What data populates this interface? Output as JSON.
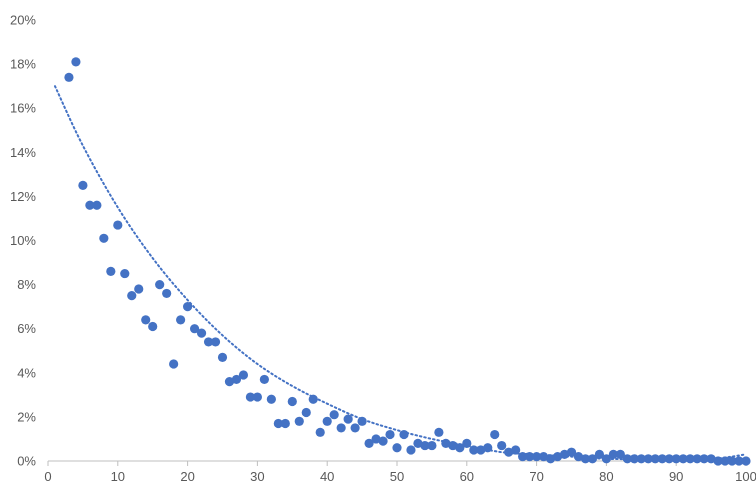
{
  "chart_data": {
    "type": "scatter",
    "title": "",
    "xlabel": "",
    "ylabel": "",
    "xlim": [
      0,
      100
    ],
    "ylim": [
      0,
      0.2
    ],
    "x_ticks": [
      0,
      10,
      20,
      30,
      40,
      50,
      60,
      70,
      80,
      90,
      100
    ],
    "x_tick_labels": [
      "0",
      "10",
      "20",
      "30",
      "40",
      "50",
      "60",
      "70",
      "80",
      "90",
      "100"
    ],
    "y_ticks": [
      0,
      0.02,
      0.04,
      0.06,
      0.08,
      0.1,
      0.12,
      0.14,
      0.16,
      0.18,
      0.2
    ],
    "y_tick_labels": [
      "0%",
      "2%",
      "4%",
      "6%",
      "8%",
      "10%",
      "12%",
      "14%",
      "16%",
      "18%",
      "20%"
    ],
    "grid": false,
    "legend": "none",
    "marker_color": "#4472c4",
    "trendline": {
      "type": "exponential",
      "style": "dotted",
      "color": "#4472c4",
      "x": [
        1,
        5,
        10,
        15,
        20,
        25,
        30,
        35,
        40,
        45,
        50,
        55,
        60,
        65,
        70,
        75,
        80,
        85,
        90,
        95,
        100
      ],
      "y": [
        0.17,
        0.143,
        0.115,
        0.092,
        0.073,
        0.057,
        0.044,
        0.034,
        0.026,
        0.019,
        0.014,
        0.01,
        0.007,
        0.004,
        0.003,
        0.002,
        0.001,
        0.0008,
        0.0005,
        0.0008,
        0.003
      ]
    },
    "series": [
      {
        "x": [
          3,
          4,
          5,
          6,
          7,
          8,
          9,
          10,
          11,
          12,
          13,
          14,
          15,
          16,
          17,
          18,
          19,
          20,
          21,
          22,
          23,
          24,
          25,
          26,
          27,
          28,
          29,
          30,
          31,
          32,
          33,
          34,
          35,
          36,
          37,
          38,
          39,
          40,
          41,
          42,
          43,
          44,
          45,
          46,
          47,
          48,
          49,
          50,
          51,
          52,
          53,
          54,
          55,
          56,
          57,
          58,
          59,
          60,
          61,
          62,
          63,
          64,
          65,
          66,
          67,
          68,
          69,
          70,
          71,
          72,
          73,
          74,
          75,
          76,
          77,
          78,
          79,
          80,
          81,
          82,
          83,
          84,
          85,
          86,
          87,
          88,
          89,
          90,
          91,
          92,
          93,
          94,
          95,
          96,
          97,
          98,
          99,
          100
        ],
        "y": [
          0.174,
          0.181,
          0.125,
          0.116,
          0.116,
          0.101,
          0.086,
          0.107,
          0.085,
          0.075,
          0.078,
          0.064,
          0.061,
          0.08,
          0.076,
          0.044,
          0.064,
          0.07,
          0.06,
          0.058,
          0.054,
          0.054,
          0.047,
          0.036,
          0.037,
          0.039,
          0.029,
          0.029,
          0.037,
          0.028,
          0.017,
          0.017,
          0.027,
          0.018,
          0.022,
          0.028,
          0.013,
          0.018,
          0.021,
          0.015,
          0.019,
          0.015,
          0.018,
          0.008,
          0.01,
          0.009,
          0.012,
          0.006,
          0.012,
          0.005,
          0.008,
          0.007,
          0.007,
          0.013,
          0.008,
          0.007,
          0.006,
          0.008,
          0.005,
          0.005,
          0.006,
          0.012,
          0.007,
          0.004,
          0.005,
          0.002,
          0.002,
          0.002,
          0.002,
          0.001,
          0.002,
          0.003,
          0.004,
          0.002,
          0.001,
          0.001,
          0.003,
          0.001,
          0.003,
          0.003,
          0.001,
          0.001,
          0.001,
          0.001,
          0.001,
          0.001,
          0.001,
          0.001,
          0.001,
          0.001,
          0.001,
          0.001,
          0.001,
          0.0,
          0.0,
          0.0,
          0.0,
          0.0
        ]
      }
    ]
  }
}
